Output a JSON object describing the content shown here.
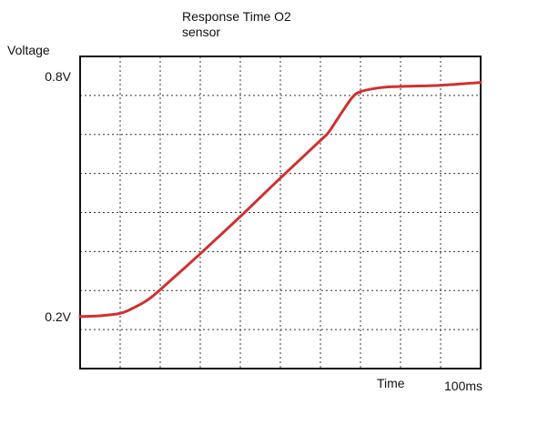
{
  "chart_data": {
    "type": "line",
    "title_lines": [
      "Response Time O2",
      "sensor"
    ],
    "ylabel": "Voltage",
    "xlabel": "Time",
    "x_end_label": "100ms",
    "x_units": "ms",
    "y_units": "V",
    "xlim": [
      0,
      100
    ],
    "ylim": [
      0.07,
      0.85
    ],
    "y_tick_labels": [
      {
        "value": 0.8,
        "label": "0.8V"
      },
      {
        "value": 0.2,
        "label": "0.2V"
      }
    ],
    "grid": true,
    "grid_divisions": {
      "x": 10,
      "y": 8
    },
    "line_color": "#d03030",
    "series": [
      {
        "x": [
          0,
          5,
          10,
          13,
          16,
          18,
          22,
          30,
          40,
          50,
          60,
          62,
          64,
          66,
          68,
          70,
          75,
          80,
          90,
          100
        ],
        "y": [
          0.2,
          0.202,
          0.208,
          0.22,
          0.236,
          0.25,
          0.285,
          0.357,
          0.45,
          0.546,
          0.64,
          0.66,
          0.69,
          0.72,
          0.748,
          0.762,
          0.772,
          0.775,
          0.778,
          0.785
        ]
      }
    ]
  }
}
